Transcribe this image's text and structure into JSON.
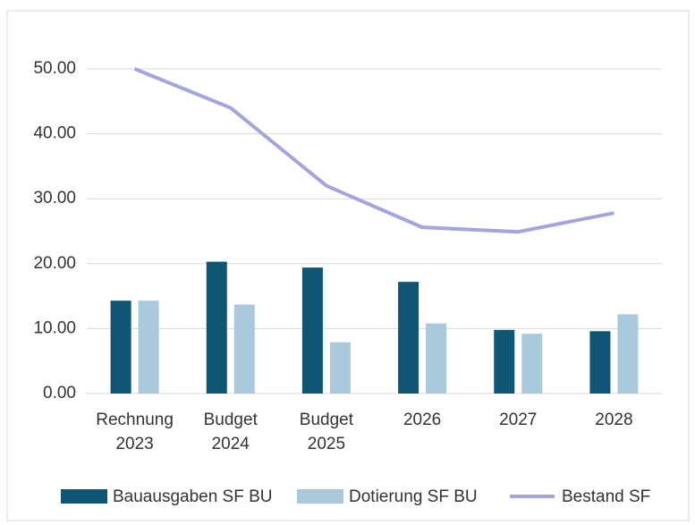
{
  "chart_data": {
    "type": "bar_line",
    "categories": [
      "Rechnung\n2023",
      "Budget\n2024",
      "Budget\n2025",
      "2026",
      "2027",
      "2028"
    ],
    "series": [
      {
        "name": "Bauausgaben SF BU",
        "type": "bar",
        "color": "#0e5673",
        "values": [
          14.3,
          20.3,
          19.4,
          17.2,
          9.8,
          9.6
        ]
      },
      {
        "name": "Dotierung SF BU",
        "type": "bar",
        "color": "#a8cadc",
        "values": [
          14.3,
          13.7,
          7.9,
          10.8,
          9.2,
          12.2
        ]
      },
      {
        "name": "Bestand SF",
        "type": "line",
        "color": "#a3a6dc",
        "values": [
          50.0,
          44.0,
          32.0,
          25.6,
          24.9,
          27.8
        ]
      }
    ],
    "ylim": [
      0,
      50
    ],
    "yticks": [
      {
        "value": 0,
        "label": "0.00"
      },
      {
        "value": 10,
        "label": "10.00"
      },
      {
        "value": 20,
        "label": "20.00"
      },
      {
        "value": 30,
        "label": "30.00"
      },
      {
        "value": 40,
        "label": "40.00"
      },
      {
        "value": 50,
        "label": "50.00"
      }
    ],
    "grid": true,
    "legend": "bottom"
  }
}
